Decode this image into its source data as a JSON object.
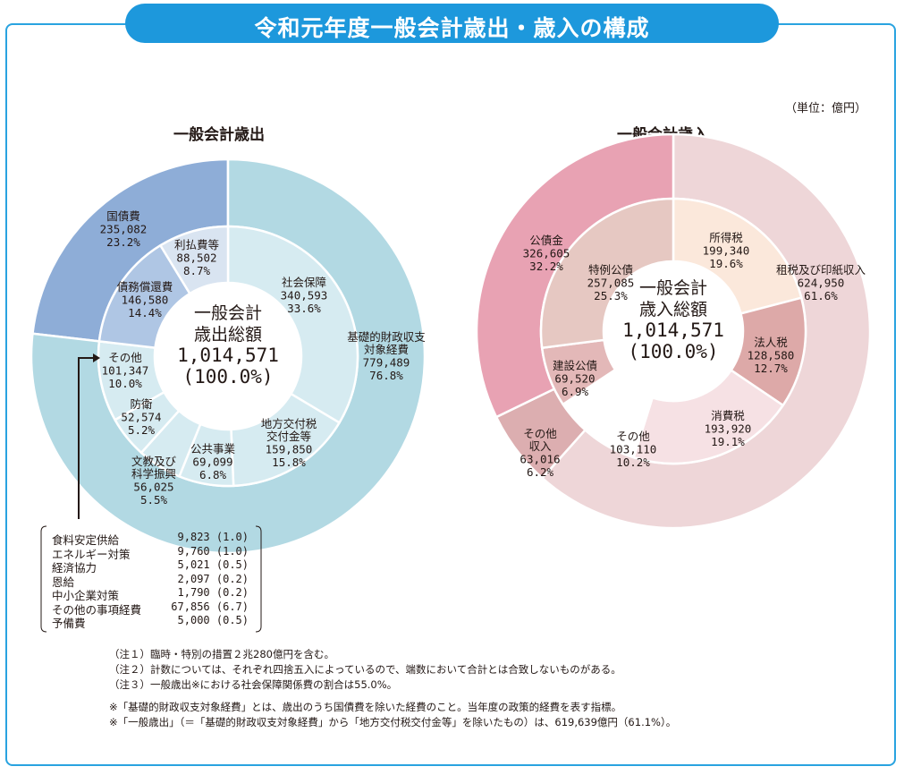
{
  "title": "令和元年度一般会計歳出・歳入の構成",
  "unit": "（単位：億円）",
  "left_title": "一般会計歳出",
  "right_title": "一般会計歳入",
  "colors": {
    "accent": "#1d98dc",
    "exp_outer_main": "#b2d9e3",
    "exp_outer_debt": "#8eadd7",
    "exp_inner_main": "#d6ebf1",
    "exp_inner_debt": "#afc6e4",
    "exp_inner_debt_light": "#d9e4f1",
    "rev_outer_tax": "#eed6d8",
    "rev_outer_bond": "#e8a2b3",
    "rev_outer_other": "#dcaeb0",
    "rev_income": "#fbe8db",
    "rev_corp": "#dda9a8",
    "rev_consumption": "#f6e1e4",
    "rev_special": "#e6c8c2",
    "rev_construction": "#e3b8b8"
  },
  "chart_data": [
    {
      "type": "pie",
      "title": "一般会計歳出",
      "center_label": [
        "一般会計",
        "歳出総額",
        "1,014,571",
        "(100.0%)"
      ],
      "total": 1014571,
      "outer": [
        {
          "label": [
            "基礎的財政収支",
            "対象経費"
          ],
          "value": 779489,
          "percent": "76.8%",
          "value_text": "779,489"
        },
        {
          "label": [
            "国債費"
          ],
          "value": 235082,
          "percent": "23.2%",
          "value_text": "235,082"
        }
      ],
      "inner": [
        {
          "label": [
            "社会保障"
          ],
          "value": 340593,
          "percent": "33.6%",
          "value_text": "340,593"
        },
        {
          "label": [
            "地方交付税",
            "交付金等"
          ],
          "value": 159850,
          "percent": "15.8%",
          "value_text": "159,850"
        },
        {
          "label": [
            "公共事業"
          ],
          "value": 69099,
          "percent": "6.8%",
          "value_text": "69,099"
        },
        {
          "label": [
            "文教及び",
            "科学振興"
          ],
          "value": 56025,
          "percent": "5.5%",
          "value_text": "56,025"
        },
        {
          "label": [
            "防衛"
          ],
          "value": 52574,
          "percent": "5.2%",
          "value_text": "52,574"
        },
        {
          "label": [
            "その他"
          ],
          "value": 101347,
          "percent": "10.0%",
          "value_text": "101,347"
        },
        {
          "label": [
            "債務償還費"
          ],
          "value": 146580,
          "percent": "14.4%",
          "value_text": "146,580"
        },
        {
          "label": [
            "利払費等"
          ],
          "value": 88502,
          "percent": "8.7%",
          "value_text": "88,502"
        }
      ],
      "other_breakdown": [
        {
          "name": "食料安定供給",
          "value": "9,823",
          "percent": "(1.0)"
        },
        {
          "name": "エネルギー対策",
          "value": "9,760",
          "percent": "(1.0)"
        },
        {
          "name": "経済協力",
          "value": "5,021",
          "percent": "(0.5)"
        },
        {
          "name": "恩給",
          "value": "2,097",
          "percent": "(0.2)"
        },
        {
          "name": "中小企業対策",
          "value": "1,790",
          "percent": "(0.2)"
        },
        {
          "name": "その他の事項経費",
          "value": "67,856",
          "percent": "(6.7)"
        },
        {
          "name": "予備費",
          "value": "5,000",
          "percent": "(0.5)"
        }
      ]
    },
    {
      "type": "pie",
      "title": "一般会計歳入",
      "center_label": [
        "一般会計",
        "歳入総額",
        "1,014,571",
        "(100.0%)"
      ],
      "total": 1014571,
      "outer": [
        {
          "label": [
            "租税及び印紙収入"
          ],
          "value": 624950,
          "percent": "61.6%",
          "value_text": "624,950"
        },
        {
          "label": [
            "その他",
            "収入"
          ],
          "value": 63016,
          "percent": "6.2%",
          "value_text": "63,016"
        },
        {
          "label": [
            "公債金"
          ],
          "value": 326605,
          "percent": "32.2%",
          "value_text": "326,605"
        }
      ],
      "inner": [
        {
          "label": [
            "所得税"
          ],
          "value": 199340,
          "percent": "19.6%",
          "value_text": "199,340"
        },
        {
          "label": [
            "法人税"
          ],
          "value": 128580,
          "percent": "12.7%",
          "value_text": "128,580"
        },
        {
          "label": [
            "消費税"
          ],
          "value": 193920,
          "percent": "19.1%",
          "value_text": "193,920"
        },
        {
          "label": [
            "その他"
          ],
          "value": 103110,
          "percent": "10.2%",
          "value_text": "103,110"
        },
        {
          "label": [
            "建設公債"
          ],
          "value": 69520,
          "percent": "6.9%",
          "value_text": "69,520"
        },
        {
          "label": [
            "特例公債"
          ],
          "value": 257085,
          "percent": "25.3%",
          "value_text": "257,085"
        }
      ]
    }
  ],
  "notes": [
    "（注１）臨時・特別の措置２兆280億円を含む。",
    "（注２）計数については、それぞれ四捨五入によっているので、端数において合計とは合致しないものがある。",
    "（注３）一般歳出※における社会保障関係費の割合は55.0%。",
    "※「基礎的財政収支対象経費」とは、歳出のうち国債費を除いた経費のこと。当年度の政策的経費を表す指標。",
    "※「一般歳出」（＝「基礎的財政収支対象経費」から「地方交付税交付金等」を除いたもの）は、619,639億円（61.1%）。"
  ]
}
